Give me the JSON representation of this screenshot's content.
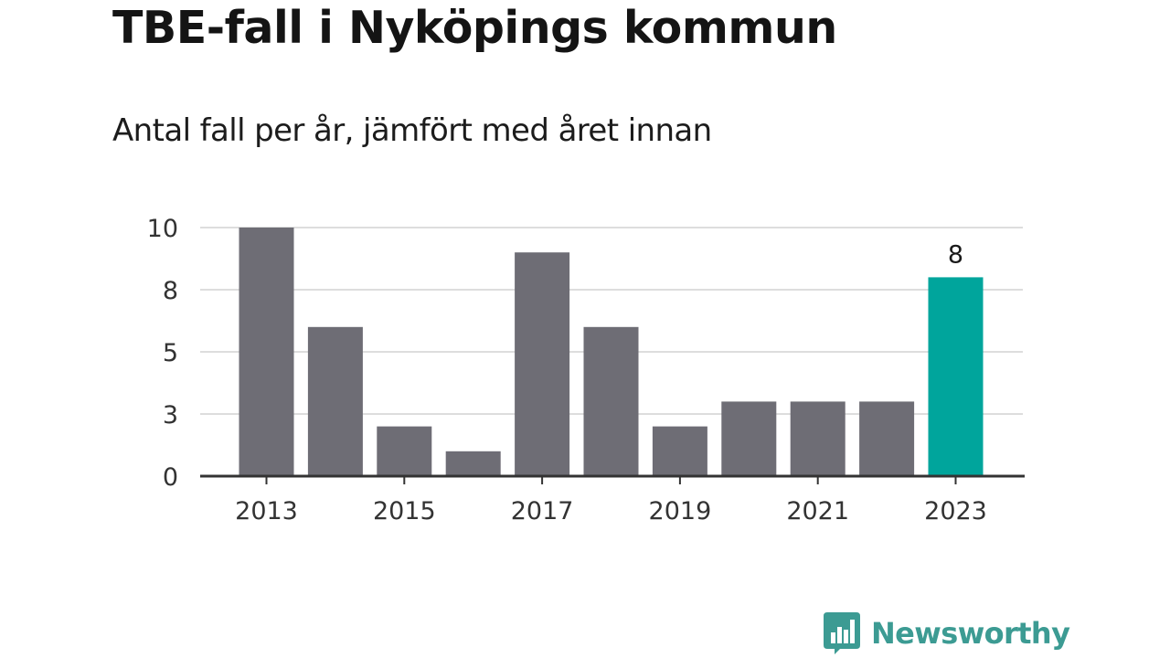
{
  "title": "TBE-fall i Nyköpings kommun",
  "subtitle": "Antal fall per år, jämfört med året innan",
  "colors": {
    "bar": "#6e6d75",
    "highlight": "#00a59c",
    "grid": "#dddddd",
    "axis": "#333333",
    "brand": "#3c9b93"
  },
  "chart_data": {
    "type": "bar",
    "title": "TBE-fall i Nyköpings kommun",
    "subtitle": "Antal fall per år, jämfört med året innan",
    "xlabel": "",
    "ylabel": "",
    "categories": [
      "2013",
      "2014",
      "2015",
      "2016",
      "2017",
      "2018",
      "2019",
      "2020",
      "2021",
      "2022",
      "2023"
    ],
    "values": [
      10,
      6,
      2,
      1,
      9,
      6,
      2,
      3,
      3,
      3,
      8
    ],
    "highlight_index": 10,
    "highlight_label": "8",
    "x_tick_labels": [
      "2013",
      "2015",
      "2017",
      "2019",
      "2021",
      "2023"
    ],
    "y_ticks": [
      0,
      2.5,
      5,
      7.5,
      10
    ],
    "y_tick_labels": [
      "0",
      "3",
      "5",
      "8",
      "10"
    ],
    "ylim": [
      0,
      10
    ],
    "grid": true,
    "legend": "none"
  },
  "brand": {
    "name": "Newsworthy",
    "icon": "newsworthy-logo-icon"
  }
}
